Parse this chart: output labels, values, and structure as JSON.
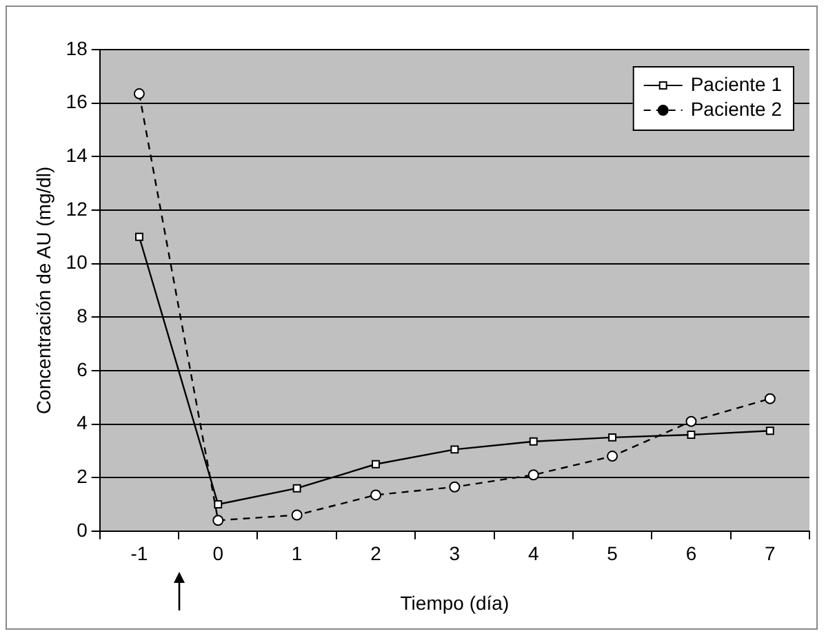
{
  "chart_data": {
    "type": "line",
    "xlabel": "Tiempo (día)",
    "ylabel": "Concentración de AU (mg/dl)",
    "categories": [
      "-1",
      "0",
      "1",
      "2",
      "3",
      "4",
      "5",
      "6",
      "7"
    ],
    "ylim": [
      0,
      18
    ],
    "yticks": [
      0,
      2,
      4,
      6,
      8,
      10,
      12,
      14,
      16,
      18
    ],
    "grid": "y",
    "legend": "top right",
    "series": [
      {
        "name": "Paciente 1",
        "color": "#000000",
        "marker": "square",
        "line_style": "solid",
        "values": [
          11.0,
          1.0,
          1.6,
          2.5,
          3.05,
          3.35,
          3.5,
          3.6,
          3.75
        ]
      },
      {
        "name": "Paciente 2",
        "color": "#000000",
        "marker": "circle",
        "line_style": "dashed",
        "values": [
          16.35,
          0.4,
          0.6,
          1.35,
          1.65,
          2.1,
          2.8,
          4.1,
          4.95
        ]
      }
    ]
  }
}
